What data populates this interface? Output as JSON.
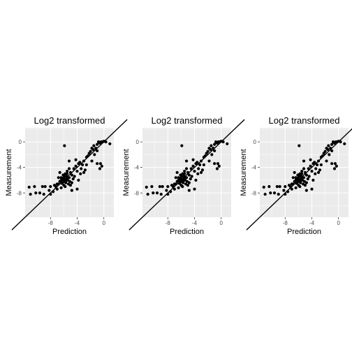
{
  "chart_data": [
    {
      "type": "scatter",
      "title": "Log2 transformed",
      "xlabel": "Prediction",
      "ylabel": "Measurement",
      "xlim": [
        -11.8,
        1.5
      ],
      "ylim": [
        -11.8,
        2.2
      ],
      "xticks": [
        -8,
        -4,
        0
      ],
      "xtick_labels": [
        "-8",
        "-4",
        "0"
      ],
      "yticks": [
        0,
        -4,
        -8
      ],
      "ytick_labels": [
        "0",
        "-4",
        "-8"
      ],
      "grid": true,
      "reference_line": {
        "slope": 1,
        "intercept": 0
      },
      "colors": {
        "panel_bg": "#ebebeb",
        "grid": "#ffffff",
        "points": "#000000",
        "line": "#000000"
      },
      "points": [
        [
          -11.0,
          -8.2
        ],
        [
          -11.2,
          -7.1
        ],
        [
          -10.4,
          -7.0
        ],
        [
          -10.2,
          -8.0
        ],
        [
          -9.2,
          -7.0
        ],
        [
          -8.8,
          -7.0
        ],
        [
          -8.2,
          -7.6
        ],
        [
          -8.0,
          -8.2
        ],
        [
          -7.6,
          -7.8
        ],
        [
          -7.2,
          -7.0
        ],
        [
          -7.0,
          -6.6
        ],
        [
          -6.8,
          -6.6
        ],
        [
          -6.6,
          -6.2
        ],
        [
          -6.4,
          -6.0
        ],
        [
          -6.3,
          -6.5
        ],
        [
          -6.2,
          -5.8
        ],
        [
          -6.1,
          -5.2
        ],
        [
          -6.0,
          -6.0
        ],
        [
          -6.0,
          -6.8
        ],
        [
          -5.9,
          -5.4
        ],
        [
          -5.8,
          -6.2
        ],
        [
          -5.7,
          -6.4
        ],
        [
          -5.6,
          -5.8
        ],
        [
          -5.5,
          -5.0
        ],
        [
          -5.4,
          -6.0
        ],
        [
          -5.3,
          -6.6
        ],
        [
          -5.2,
          -5.6
        ],
        [
          -5.1,
          -6.2
        ],
        [
          -5.0,
          -4.8
        ],
        [
          -5.0,
          -6.8
        ],
        [
          -4.8,
          -5.2
        ],
        [
          -4.8,
          -6.4
        ],
        [
          -4.6,
          -5.8
        ],
        [
          -4.5,
          -4.2
        ],
        [
          -4.4,
          -5.4
        ],
        [
          -4.2,
          -3.8
        ],
        [
          -4.0,
          -4.6
        ],
        [
          -4.0,
          -7.4
        ],
        [
          -3.8,
          -6.0
        ],
        [
          -3.6,
          -3.2
        ],
        [
          -3.5,
          -5.0
        ],
        [
          -3.4,
          -4.2
        ],
        [
          -3.2,
          -3.6
        ],
        [
          -3.0,
          -3.0
        ],
        [
          -2.8,
          -4.4
        ],
        [
          -2.6,
          -2.4
        ],
        [
          -2.4,
          -2.2
        ],
        [
          -2.2,
          -1.8
        ],
        [
          -2.0,
          -1.5
        ],
        [
          -1.8,
          -1.0
        ],
        [
          -1.8,
          -3.0
        ],
        [
          -1.6,
          -1.2
        ],
        [
          -1.5,
          -0.6
        ],
        [
          -1.4,
          -2.0
        ],
        [
          -1.2,
          -1.0
        ],
        [
          -1.0,
          -1.4
        ],
        [
          -1.0,
          -0.4
        ],
        [
          -0.8,
          0.0
        ],
        [
          -0.6,
          -0.2
        ],
        [
          -0.4,
          0.0
        ],
        [
          -0.2,
          0.0
        ],
        [
          0.0,
          0.1
        ],
        [
          0.3,
          0.0
        ],
        [
          0.9,
          -0.3
        ],
        [
          -0.6,
          -4.2
        ],
        [
          -0.3,
          -3.8
        ],
        [
          -0.5,
          -3.4
        ],
        [
          -1.0,
          -3.4
        ],
        [
          -5.9,
          -0.6
        ],
        [
          -5.2,
          -3.0
        ],
        [
          -6.6,
          -4.8
        ],
        [
          -6.8,
          -5.6
        ],
        [
          -5.5,
          -4.6
        ],
        [
          -4.2,
          -2.8
        ],
        [
          -3.8,
          -3.4
        ],
        [
          -7.0,
          -7.4
        ],
        [
          -6.4,
          -7.2
        ],
        [
          -5.8,
          -7.0
        ],
        [
          -4.8,
          -7.6
        ],
        [
          -3.0,
          -4.8
        ],
        [
          -2.6,
          -3.6
        ],
        [
          -6.0,
          -5.6
        ],
        [
          -5.6,
          -5.4
        ],
        [
          -5.8,
          -5.0
        ],
        [
          -6.2,
          -6.4
        ],
        [
          -6.0,
          -6.2
        ],
        [
          -5.6,
          -6.0
        ],
        [
          -5.4,
          -5.6
        ],
        [
          -6.4,
          -5.6
        ],
        [
          -5.2,
          -4.2
        ],
        [
          -7.4,
          -6.8
        ],
        [
          -8.0,
          -7.0
        ],
        [
          -9.0,
          -8.2
        ],
        [
          -9.6,
          -8.0
        ]
      ]
    },
    {
      "type": "scatter",
      "title": "Log2 transformed",
      "xlabel": "Prediction",
      "ylabel": "Measurement",
      "xlim": [
        -11.8,
        1.5
      ],
      "ylim": [
        -11.8,
        2.2
      ],
      "xticks": [
        -8,
        -4,
        0
      ],
      "xtick_labels": [
        "-8",
        "-4",
        "0"
      ],
      "yticks": [
        0,
        -4,
        -8
      ],
      "ytick_labels": [
        "0",
        "-4",
        "-8"
      ],
      "grid": true,
      "reference_line": {
        "slope": 1,
        "intercept": 0
      },
      "colors": {
        "panel_bg": "#ebebeb",
        "grid": "#ffffff",
        "points": "#000000",
        "line": "#000000"
      },
      "points": [
        [
          -11.0,
          -8.2
        ],
        [
          -11.2,
          -7.1
        ],
        [
          -10.4,
          -7.0
        ],
        [
          -10.2,
          -8.0
        ],
        [
          -9.2,
          -7.0
        ],
        [
          -8.8,
          -7.0
        ],
        [
          -8.2,
          -7.6
        ],
        [
          -8.0,
          -8.2
        ],
        [
          -7.6,
          -7.8
        ],
        [
          -7.2,
          -7.0
        ],
        [
          -7.0,
          -6.6
        ],
        [
          -6.8,
          -6.6
        ],
        [
          -6.6,
          -6.2
        ],
        [
          -6.4,
          -6.0
        ],
        [
          -6.3,
          -6.5
        ],
        [
          -6.2,
          -5.8
        ],
        [
          -6.1,
          -5.2
        ],
        [
          -6.0,
          -6.0
        ],
        [
          -6.0,
          -6.8
        ],
        [
          -5.9,
          -5.4
        ],
        [
          -5.8,
          -6.2
        ],
        [
          -5.7,
          -6.4
        ],
        [
          -5.6,
          -5.8
        ],
        [
          -5.5,
          -5.0
        ],
        [
          -5.4,
          -6.0
        ],
        [
          -5.3,
          -6.6
        ],
        [
          -5.2,
          -5.6
        ],
        [
          -5.1,
          -6.2
        ],
        [
          -5.0,
          -4.8
        ],
        [
          -5.0,
          -6.8
        ],
        [
          -4.8,
          -5.2
        ],
        [
          -4.8,
          -6.4
        ],
        [
          -4.6,
          -5.8
        ],
        [
          -4.5,
          -4.2
        ],
        [
          -4.4,
          -5.4
        ],
        [
          -4.2,
          -3.8
        ],
        [
          -4.0,
          -4.6
        ],
        [
          -4.0,
          -7.4
        ],
        [
          -3.8,
          -6.0
        ],
        [
          -3.6,
          -3.2
        ],
        [
          -3.5,
          -5.0
        ],
        [
          -3.4,
          -4.2
        ],
        [
          -3.2,
          -3.6
        ],
        [
          -3.0,
          -3.0
        ],
        [
          -2.8,
          -4.4
        ],
        [
          -2.6,
          -2.4
        ],
        [
          -2.4,
          -2.2
        ],
        [
          -2.2,
          -1.8
        ],
        [
          -2.0,
          -1.5
        ],
        [
          -1.8,
          -1.0
        ],
        [
          -1.8,
          -3.0
        ],
        [
          -1.6,
          -1.2
        ],
        [
          -1.5,
          -0.6
        ],
        [
          -1.4,
          -2.0
        ],
        [
          -1.2,
          -1.0
        ],
        [
          -1.0,
          -1.4
        ],
        [
          -1.0,
          -0.4
        ],
        [
          -0.8,
          0.0
        ],
        [
          -0.6,
          -0.2
        ],
        [
          -0.4,
          0.0
        ],
        [
          -0.2,
          0.0
        ],
        [
          0.0,
          0.1
        ],
        [
          0.3,
          0.0
        ],
        [
          0.9,
          -0.3
        ],
        [
          -0.6,
          -4.2
        ],
        [
          -0.3,
          -3.8
        ],
        [
          -0.5,
          -3.4
        ],
        [
          -1.0,
          -3.4
        ],
        [
          -5.9,
          -0.6
        ],
        [
          -5.2,
          -3.0
        ],
        [
          -6.6,
          -4.8
        ],
        [
          -6.8,
          -5.6
        ],
        [
          -5.5,
          -4.6
        ],
        [
          -4.2,
          -2.8
        ],
        [
          -3.8,
          -3.4
        ],
        [
          -7.0,
          -7.4
        ],
        [
          -6.4,
          -7.2
        ],
        [
          -5.8,
          -7.0
        ],
        [
          -4.8,
          -7.6
        ],
        [
          -3.0,
          -4.8
        ],
        [
          -2.6,
          -3.6
        ],
        [
          -6.0,
          -5.6
        ],
        [
          -5.6,
          -5.4
        ],
        [
          -5.8,
          -5.0
        ],
        [
          -6.2,
          -6.4
        ],
        [
          -6.0,
          -6.2
        ],
        [
          -5.6,
          -6.0
        ],
        [
          -5.4,
          -5.6
        ],
        [
          -6.4,
          -5.6
        ],
        [
          -5.2,
          -4.2
        ],
        [
          -7.4,
          -6.8
        ],
        [
          -8.0,
          -7.0
        ],
        [
          -9.0,
          -8.2
        ],
        [
          -9.6,
          -8.0
        ]
      ]
    },
    {
      "type": "scatter",
      "title": "Log2 transformed",
      "xlabel": "Prediction",
      "ylabel": "Measurement",
      "xlim": [
        -11.8,
        1.5
      ],
      "ylim": [
        -11.8,
        2.2
      ],
      "xticks": [
        -8,
        -4,
        0
      ],
      "xtick_labels": [
        "-8",
        "-4",
        "0"
      ],
      "yticks": [
        0,
        -4,
        -8
      ],
      "ytick_labels": [
        "0",
        "-4",
        "-8"
      ],
      "grid": true,
      "reference_line": {
        "slope": 1,
        "intercept": 0
      },
      "colors": {
        "panel_bg": "#ebebeb",
        "grid": "#ffffff",
        "points": "#000000",
        "line": "#000000"
      },
      "points": [
        [
          -11.0,
          -8.2
        ],
        [
          -11.2,
          -7.1
        ],
        [
          -10.4,
          -7.0
        ],
        [
          -10.2,
          -8.0
        ],
        [
          -9.2,
          -7.0
        ],
        [
          -8.8,
          -7.0
        ],
        [
          -8.2,
          -7.6
        ],
        [
          -8.0,
          -8.2
        ],
        [
          -7.6,
          -7.8
        ],
        [
          -7.2,
          -7.0
        ],
        [
          -7.0,
          -6.6
        ],
        [
          -6.8,
          -6.6
        ],
        [
          -6.6,
          -6.2
        ],
        [
          -6.4,
          -6.0
        ],
        [
          -6.3,
          -6.5
        ],
        [
          -6.2,
          -5.8
        ],
        [
          -6.1,
          -5.2
        ],
        [
          -6.0,
          -6.0
        ],
        [
          -6.0,
          -6.8
        ],
        [
          -5.9,
          -5.4
        ],
        [
          -5.8,
          -6.2
        ],
        [
          -5.7,
          -6.4
        ],
        [
          -5.6,
          -5.8
        ],
        [
          -5.5,
          -5.0
        ],
        [
          -5.4,
          -6.0
        ],
        [
          -5.3,
          -6.6
        ],
        [
          -5.2,
          -5.6
        ],
        [
          -5.1,
          -6.2
        ],
        [
          -5.0,
          -4.8
        ],
        [
          -5.0,
          -6.8
        ],
        [
          -4.8,
          -5.2
        ],
        [
          -4.8,
          -6.4
        ],
        [
          -4.6,
          -5.8
        ],
        [
          -4.5,
          -4.2
        ],
        [
          -4.4,
          -5.4
        ],
        [
          -4.2,
          -3.8
        ],
        [
          -4.0,
          -4.6
        ],
        [
          -4.0,
          -7.4
        ],
        [
          -3.8,
          -6.0
        ],
        [
          -3.6,
          -3.2
        ],
        [
          -3.5,
          -5.0
        ],
        [
          -3.4,
          -4.2
        ],
        [
          -3.2,
          -3.6
        ],
        [
          -3.0,
          -3.0
        ],
        [
          -2.8,
          -4.4
        ],
        [
          -2.6,
          -2.4
        ],
        [
          -2.4,
          -2.2
        ],
        [
          -2.2,
          -1.8
        ],
        [
          -2.0,
          -1.5
        ],
        [
          -1.8,
          -1.0
        ],
        [
          -1.8,
          -3.0
        ],
        [
          -1.6,
          -1.2
        ],
        [
          -1.5,
          -0.6
        ],
        [
          -1.4,
          -2.0
        ],
        [
          -1.2,
          -1.0
        ],
        [
          -1.0,
          -1.4
        ],
        [
          -1.0,
          -0.4
        ],
        [
          -0.8,
          0.0
        ],
        [
          -0.6,
          -0.2
        ],
        [
          -0.4,
          0.0
        ],
        [
          -0.2,
          0.0
        ],
        [
          0.0,
          0.1
        ],
        [
          0.3,
          0.0
        ],
        [
          0.9,
          -0.3
        ],
        [
          -0.6,
          -4.2
        ],
        [
          -0.3,
          -3.8
        ],
        [
          -0.5,
          -3.4
        ],
        [
          -1.0,
          -3.4
        ],
        [
          -5.9,
          -0.6
        ],
        [
          -5.2,
          -3.0
        ],
        [
          -6.6,
          -4.8
        ],
        [
          -6.8,
          -5.6
        ],
        [
          -5.5,
          -4.6
        ],
        [
          -4.2,
          -2.8
        ],
        [
          -3.8,
          -3.4
        ],
        [
          -7.0,
          -7.4
        ],
        [
          -6.4,
          -7.2
        ],
        [
          -5.8,
          -7.0
        ],
        [
          -4.8,
          -7.6
        ],
        [
          -3.0,
          -4.8
        ],
        [
          -2.6,
          -3.6
        ],
        [
          -6.0,
          -5.6
        ],
        [
          -5.6,
          -5.4
        ],
        [
          -5.8,
          -5.0
        ],
        [
          -6.2,
          -6.4
        ],
        [
          -6.0,
          -6.2
        ],
        [
          -5.6,
          -6.0
        ],
        [
          -5.4,
          -5.6
        ],
        [
          -6.4,
          -5.6
        ],
        [
          -5.2,
          -4.2
        ],
        [
          -7.4,
          -6.8
        ],
        [
          -8.0,
          -7.0
        ],
        [
          -9.0,
          -8.2
        ],
        [
          -9.6,
          -8.0
        ]
      ]
    }
  ]
}
